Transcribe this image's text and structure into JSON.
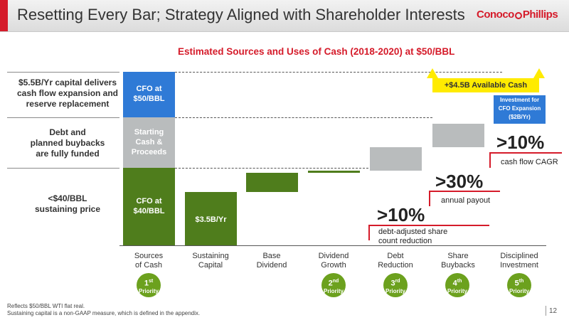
{
  "title": "Resetting Every Bar; Strategy Aligned with Shareholder Interests",
  "logo": {
    "text_a": "Conoco",
    "text_b": "Phillips"
  },
  "page_number": "12",
  "footnotes": [
    "Reflects $50/BBL WTI flat real.",
    "Sustaining capital is a non-GAAP measure, which is defined in the appendix."
  ],
  "side_labels": [
    {
      "lines": [
        "$5.5B/Yr capital delivers",
        "cash flow expansion and",
        "reserve replacement"
      ]
    },
    {
      "lines": [
        "Debt and",
        "planned buybacks",
        "are fully funded"
      ]
    },
    {
      "lines": [
        "<$40/BBL",
        "sustaining price"
      ]
    }
  ],
  "blocks": {
    "cfo50": [
      "CFO at",
      "$50/BBL"
    ],
    "starting_cash": [
      "Starting",
      "Cash &",
      "Proceeds"
    ],
    "cfo40": [
      "CFO at",
      "$40/BBL"
    ],
    "sustaining": "$3.5B/Yr",
    "investment": [
      "Investment for",
      "CFO Expansion",
      "($2B/Yr)"
    ]
  },
  "available_cash": "+$4.5B Available Cash",
  "callouts": [
    {
      "big": ">10%",
      "small": "cash flow CAGR"
    },
    {
      "big": ">30%",
      "small": "annual payout"
    },
    {
      "big": ">10%",
      "small_lines": [
        "debt-adjusted share",
        "count reduction"
      ]
    }
  ],
  "priority_label": "Priority",
  "priorities": [
    {
      "num": "1",
      "sup": "st"
    },
    {
      "num": "2",
      "sup": "nd"
    },
    {
      "num": "3",
      "sup": "rd"
    },
    {
      "num": "4",
      "sup": "th"
    },
    {
      "num": "5",
      "sup": "th"
    }
  ],
  "colors": {
    "blue": "#2f7ad6",
    "grey": "#b9bcbd",
    "green": "#4f7d1c",
    "red": "#d51b2a",
    "yellow": "#ffeb00"
  },
  "chart_data": {
    "type": "bar",
    "title": "Estimated Sources and Uses of Cash (2018-2020) at $50/BBL",
    "categories": [
      [
        "Sources",
        "of Cash"
      ],
      [
        "Sustaining",
        "Capital"
      ],
      [
        "Base",
        "Dividend"
      ],
      [
        "Dividend",
        "Growth"
      ],
      [
        "Debt",
        "Reduction"
      ],
      [
        "Share",
        "Buybacks"
      ],
      [
        "Disciplined",
        "Investment"
      ]
    ],
    "series": [
      {
        "values": [
          {
            "category": "Sources of Cash",
            "stack": [
              "CFO at $40/BBL",
              "Starting Cash & Proceeds",
              "CFO at $50/BBL"
            ]
          },
          {
            "category": "Sustaining Capital",
            "label": "$3.5B/Yr"
          },
          {
            "category": "Disciplined Investment",
            "label": "Investment for CFO Expansion ($2B/Yr)"
          }
        ]
      }
    ]
  }
}
